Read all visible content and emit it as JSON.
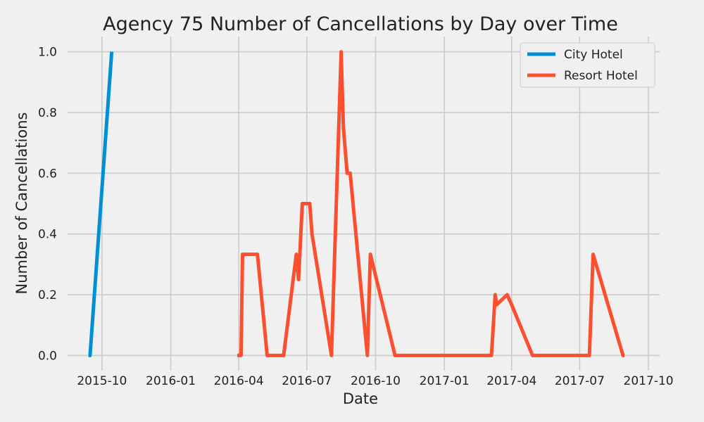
{
  "chart_data": {
    "type": "line",
    "title": "Agency 75 Number of Cancellations by Day over Time",
    "xlabel": "Date",
    "ylabel": "Number of Cancellations",
    "xlim": [
      "2015-08-16",
      "2017-10-16"
    ],
    "ylim": [
      -0.05,
      1.05
    ],
    "grid": true,
    "legend_position": "top-right",
    "x_ticks": [
      {
        "date": "2015-10-01",
        "label": "2015-10"
      },
      {
        "date": "2016-01-01",
        "label": "2016-01"
      },
      {
        "date": "2016-04-01",
        "label": "2016-04"
      },
      {
        "date": "2016-07-01",
        "label": "2016-07"
      },
      {
        "date": "2016-10-01",
        "label": "2016-10"
      },
      {
        "date": "2017-01-01",
        "label": "2017-01"
      },
      {
        "date": "2017-04-01",
        "label": "2017-04"
      },
      {
        "date": "2017-07-01",
        "label": "2017-07"
      },
      {
        "date": "2017-10-01",
        "label": "2017-10"
      }
    ],
    "y_ticks": [
      {
        "value": 0.0,
        "label": "0.0"
      },
      {
        "value": 0.2,
        "label": "0.2"
      },
      {
        "value": 0.4,
        "label": "0.4"
      },
      {
        "value": 0.6,
        "label": "0.6"
      },
      {
        "value": 0.8,
        "label": "0.8"
      },
      {
        "value": 1.0,
        "label": "1.0"
      }
    ],
    "series": [
      {
        "name": "City Hotel",
        "color": "#008fd5",
        "points": [
          [
            "2015-09-13",
            0.0
          ],
          [
            "2015-09-15",
            0.0
          ],
          [
            "2015-10-14",
            1.0
          ]
        ]
      },
      {
        "name": "Resort Hotel",
        "color": "#fc4f30",
        "points": [
          [
            "2016-03-30",
            0.0
          ],
          [
            "2016-04-04",
            0.0
          ],
          [
            "2016-04-06",
            0.333
          ],
          [
            "2016-04-26",
            0.333
          ],
          [
            "2016-05-09",
            0.0
          ],
          [
            "2016-05-31",
            0.0
          ],
          [
            "2016-06-17",
            0.333
          ],
          [
            "2016-06-20",
            0.25
          ],
          [
            "2016-06-25",
            0.5
          ],
          [
            "2016-07-05",
            0.5
          ],
          [
            "2016-07-08",
            0.4
          ],
          [
            "2016-08-03",
            0.0
          ],
          [
            "2016-08-16",
            1.0
          ],
          [
            "2016-08-19",
            0.75
          ],
          [
            "2016-08-24",
            0.6
          ],
          [
            "2016-08-28",
            0.6
          ],
          [
            "2016-09-20",
            0.0
          ],
          [
            "2016-09-24",
            0.333
          ],
          [
            "2016-10-27",
            0.0
          ],
          [
            "2017-03-05",
            0.0
          ],
          [
            "2017-03-10",
            0.2
          ],
          [
            "2017-03-12",
            0.167
          ],
          [
            "2017-03-26",
            0.2
          ],
          [
            "2017-04-01",
            0.167
          ],
          [
            "2017-04-29",
            0.0
          ],
          [
            "2017-07-14",
            0.0
          ],
          [
            "2017-07-19",
            0.333
          ],
          [
            "2017-08-28",
            0.0
          ],
          [
            "2017-08-30",
            0.0
          ]
        ]
      }
    ]
  }
}
